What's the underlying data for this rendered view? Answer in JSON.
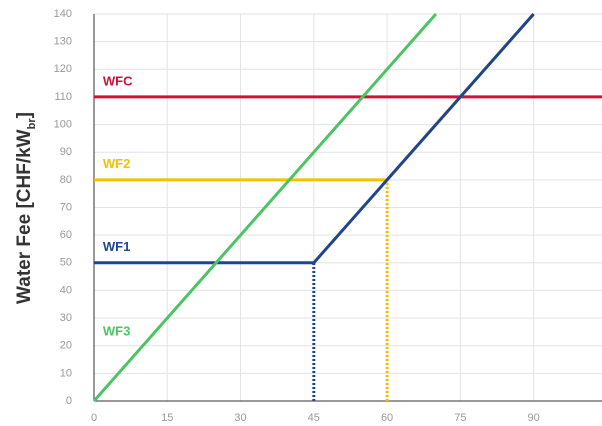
{
  "chart_data": {
    "type": "line",
    "ylabel": "Water Fee [CHF/kW",
    "ylabel_sub": "br",
    "ylabel_end": "]",
    "xlim": [
      0,
      104
    ],
    "xticks": [
      0,
      15,
      30,
      45,
      60,
      75,
      90
    ],
    "ylim": [
      0,
      140
    ],
    "yticks": [
      0,
      10,
      20,
      30,
      40,
      50,
      60,
      70,
      80,
      90,
      100,
      110,
      120,
      130,
      140
    ],
    "grid": true,
    "series": [
      {
        "name": "WFC",
        "color": "#d0103a",
        "x": [
          0,
          104
        ],
        "values": [
          110,
          110
        ]
      },
      {
        "name": "WF2",
        "color": "#f5c000",
        "x": [
          0,
          60,
          90
        ],
        "values": [
          80,
          80,
          140
        ]
      },
      {
        "name": "WF1",
        "color": "#1f4590",
        "x": [
          0,
          45,
          90
        ],
        "values": [
          50,
          50,
          140
        ]
      },
      {
        "name": "WF3",
        "color": "#4cc464",
        "x": [
          0,
          70
        ],
        "values": [
          0,
          140
        ]
      }
    ],
    "drop_lines": [
      {
        "x": 45,
        "y": 50,
        "color": "#1f4590"
      },
      {
        "x": 60,
        "y": 80,
        "color": "#f5c000"
      }
    ]
  }
}
